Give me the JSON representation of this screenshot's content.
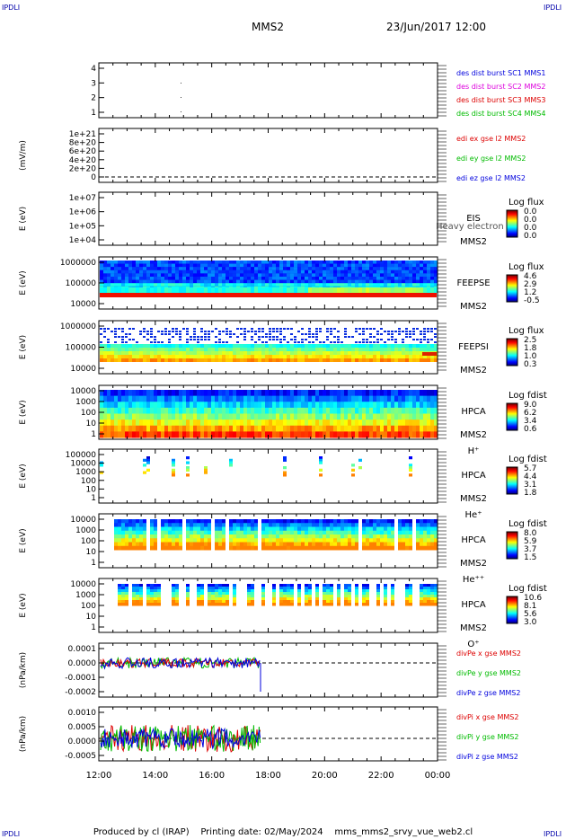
{
  "header": {
    "mission": "MMS2",
    "datetime": "23/Jun/2017 12:00",
    "corner_label": "IPDLI"
  },
  "footer": {
    "produced": "Produced by cl (IRAP)",
    "printing": "Printing date: 02/May/2024",
    "file": "mms_mms2_srvy_vue_web2.cl"
  },
  "chart_data": {
    "type": "multi-panel",
    "x_axis": {
      "ticks": [
        "12:00",
        "14:00",
        "16:00",
        "18:00",
        "20:00",
        "22:00",
        "00:00"
      ]
    },
    "panels": [
      {
        "id": "burst",
        "kind": "lines",
        "ylabel": "",
        "yticks": [
          "1",
          "2",
          "3",
          "4"
        ],
        "legend": [
          {
            "text": "des dist burst SC1 MMS1",
            "color": "#0000dd"
          },
          {
            "text": "des dist burst SC2 MMS2",
            "color": "#dd00dd"
          },
          {
            "text": "des dist burst SC3 MMS3",
            "color": "#dd0000"
          },
          {
            "text": "des dist burst SC4 MMS4",
            "color": "#00bb00"
          }
        ]
      },
      {
        "id": "edi",
        "kind": "lines",
        "ylabel": "(mV/m)",
        "yticks": [
          "0",
          "2e+20",
          "4e+20",
          "6e+20",
          "8e+20",
          "1e+21"
        ],
        "legend": [
          {
            "text": "edi ex gse l2 MMS2",
            "color": "#dd0000"
          },
          {
            "text": "edi ey gse l2 MMS2",
            "color": "#00bb00"
          },
          {
            "text": "edi ez gse l2 MMS2",
            "color": "#0000dd"
          }
        ]
      },
      {
        "id": "eis",
        "kind": "spectrogram",
        "ylabel": "E (eV)",
        "yticks": [
          "1e+04",
          "1e+05",
          "1e+06",
          "1e+07"
        ],
        "labels": [
          "EIS",
          "MMS2"
        ],
        "overlap_text": "Heavy electron to",
        "cbar_title": "Log flux",
        "cbar_ticks": [
          "0.0",
          "0.0",
          "0.0",
          "0.0"
        ]
      },
      {
        "id": "feepse",
        "kind": "spectrogram",
        "ylabel": "E (eV)",
        "yticks": [
          "10000",
          "100000",
          "1000000"
        ],
        "labels": [
          "FEEPSE",
          "MMS2"
        ],
        "cbar_title": "Log flux",
        "cbar_ticks": [
          "4.6",
          "2.9",
          "1.2",
          "-0.5"
        ]
      },
      {
        "id": "feepsi",
        "kind": "spectrogram",
        "ylabel": "E (eV)",
        "yticks": [
          "10000",
          "100000",
          "1000000"
        ],
        "labels": [
          "FEEPSI",
          "MMS2"
        ],
        "cbar_title": "Log flux",
        "cbar_ticks": [
          "2.5",
          "1.8",
          "1.0",
          "0.3"
        ]
      },
      {
        "id": "hpca_h",
        "kind": "spectrogram",
        "ylabel": "E (eV)",
        "yticks": [
          "1",
          "10",
          "100",
          "1000",
          "10000"
        ],
        "labels": [
          "HPCA",
          "MMS2",
          "H⁺"
        ],
        "cbar_title": "Log fdist",
        "cbar_ticks": [
          "9.0",
          "6.2",
          "3.4",
          "0.6"
        ]
      },
      {
        "id": "hpca_he",
        "kind": "spectrogram",
        "ylabel": "E (eV)",
        "yticks": [
          "1",
          "10",
          "100",
          "1000",
          "10000",
          "100000"
        ],
        "labels": [
          "HPCA",
          "MMS2",
          "He⁺"
        ],
        "cbar_title": "Log fdist",
        "cbar_ticks": [
          "5.7",
          "4.4",
          "3.1",
          "1.8"
        ]
      },
      {
        "id": "hpca_hepp",
        "kind": "spectrogram",
        "ylabel": "E (eV)",
        "yticks": [
          "1",
          "10",
          "100",
          "1000",
          "10000"
        ],
        "labels": [
          "HPCA",
          "MMS2",
          "He⁺⁺"
        ],
        "cbar_title": "Log fdist",
        "cbar_ticks": [
          "8.0",
          "5.9",
          "3.7",
          "1.5"
        ]
      },
      {
        "id": "hpca_o",
        "kind": "spectrogram",
        "ylabel": "E (eV)",
        "yticks": [
          "1",
          "10",
          "100",
          "1000",
          "10000"
        ],
        "labels": [
          "HPCA",
          "MMS2",
          "O⁺"
        ],
        "cbar_title": "Log fdist",
        "cbar_ticks": [
          "10.6",
          "8.1",
          "5.6",
          "3.0"
        ]
      },
      {
        "id": "divpe",
        "kind": "lines",
        "ylabel": "(nPa/km)",
        "yticks": [
          "-0.0002",
          "-0.0001",
          "0.0000",
          "0.0001"
        ],
        "legend": [
          {
            "text": "divPe x gse MMS2",
            "color": "#dd0000"
          },
          {
            "text": "divPe y gse MMS2",
            "color": "#00bb00"
          },
          {
            "text": "divPe z gse MMS2",
            "color": "#0000dd"
          }
        ]
      },
      {
        "id": "divpi",
        "kind": "lines",
        "ylabel": "(nPa/km)",
        "yticks": [
          "-0.0005",
          "0.0000",
          "0.0005",
          "0.0010"
        ],
        "legend": [
          {
            "text": "divPi x gse MMS2",
            "color": "#dd0000"
          },
          {
            "text": "divPi y gse MMS2",
            "color": "#00bb00"
          },
          {
            "text": "divPi z gse MMS2",
            "color": "#0000dd"
          }
        ]
      }
    ]
  }
}
